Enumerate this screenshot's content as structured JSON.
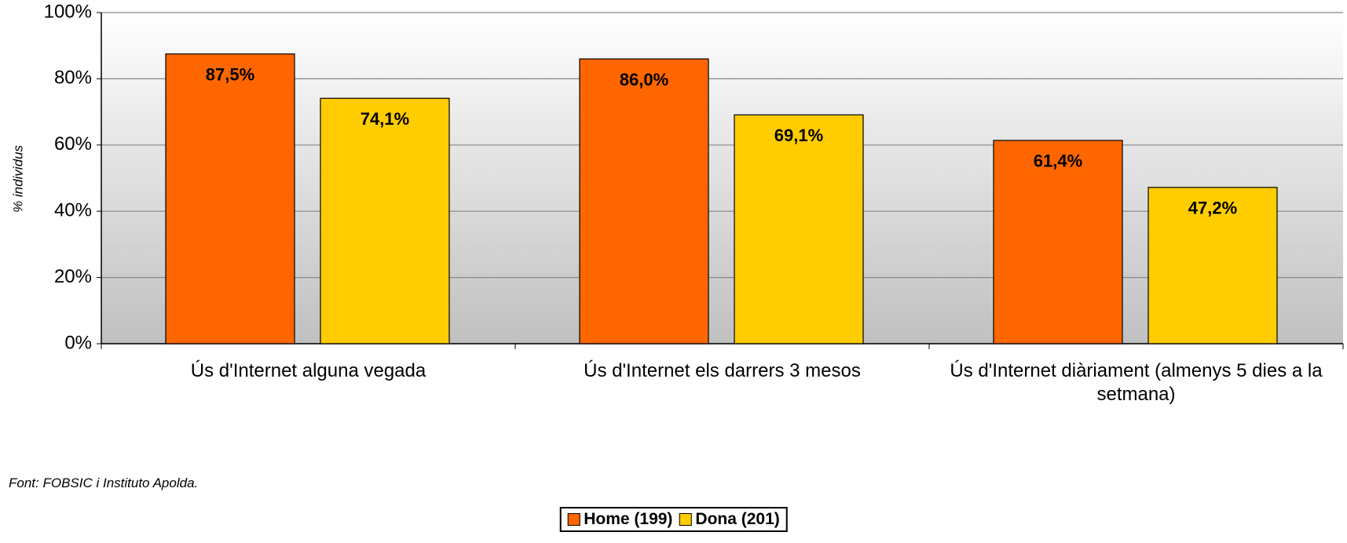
{
  "chart_data": {
    "type": "bar",
    "y_label": "% individus",
    "annotation": "Font: FOBSIC i Instituto Apolda.",
    "categories": [
      "Ús d'Internet alguna vegada",
      "Ús d'Internet els darrers 3 mesos",
      "Ús d'Internet diàriament (almenys 5 dies a la setmana)"
    ],
    "series": [
      {
        "name": "Home (199)",
        "color": "#ff6600",
        "values": [
          87.5,
          86.0,
          61.4
        ],
        "value_labels": [
          "87,5%",
          "86,0%",
          "61,4%"
        ]
      },
      {
        "name": "Dona (201)",
        "color": "#ffcc00",
        "values": [
          74.1,
          69.1,
          47.2
        ],
        "value_labels": [
          "74,1%",
          "69,1%",
          "47,2%"
        ]
      }
    ],
    "ylim": [
      0,
      100
    ],
    "yticks": [
      {
        "value": 0,
        "label": "0%"
      },
      {
        "value": 20,
        "label": "20%"
      },
      {
        "value": 40,
        "label": "40%"
      },
      {
        "value": 60,
        "label": "60%"
      },
      {
        "value": 80,
        "label": "80%"
      },
      {
        "value": 100,
        "label": "100%"
      }
    ],
    "grid": true,
    "legend": "bottom"
  }
}
